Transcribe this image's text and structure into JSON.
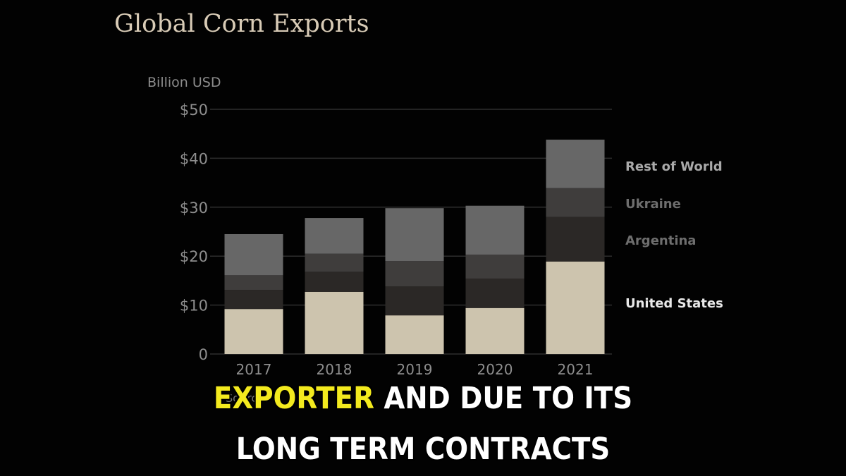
{
  "title": "Global Corn Exports",
  "source_label": "Source:",
  "caption": {
    "line1_highlight": "EXPORTER",
    "line1_rest": " AND DUE TO ITS",
    "line2": "LONG TERM CONTRACTS"
  },
  "colors": {
    "background": "#020202",
    "united_states": "#cdc4ae",
    "argentina": "#2b2826",
    "ukraine": "#3f3d3c",
    "rest_of_world": "#676767",
    "grid": "#2e2e2e",
    "caption_highlight": "#f3ea1e"
  },
  "chart_data": {
    "type": "bar",
    "stacked": true,
    "ylabel": "Billion USD",
    "xlabel": "",
    "ylim": [
      0,
      50
    ],
    "yticks": [
      0,
      10,
      20,
      30,
      40,
      50
    ],
    "ytick_labels": [
      "0",
      "$10",
      "$20",
      "$30",
      "$40",
      "$50"
    ],
    "categories": [
      "2017",
      "2018",
      "2019",
      "2020",
      "2021"
    ],
    "series": [
      {
        "name": "United States",
        "values": [
          9.2,
          12.7,
          7.9,
          9.4,
          18.9
        ]
      },
      {
        "name": "Argentina",
        "values": [
          3.9,
          4.1,
          5.9,
          6.0,
          9.1
        ]
      },
      {
        "name": "Ukraine",
        "values": [
          3.0,
          3.7,
          5.2,
          4.9,
          5.9
        ]
      },
      {
        "name": "Rest of World",
        "values": [
          8.4,
          7.3,
          10.8,
          10.0,
          9.9
        ]
      }
    ],
    "legend_placement": "right",
    "grid": true
  }
}
